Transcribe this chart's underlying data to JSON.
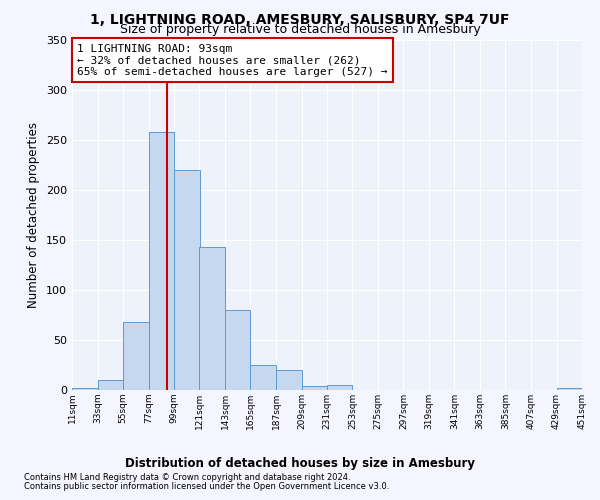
{
  "title": "1, LIGHTNING ROAD, AMESBURY, SALISBURY, SP4 7UF",
  "subtitle": "Size of property relative to detached houses in Amesbury",
  "xlabel": "Distribution of detached houses by size in Amesbury",
  "ylabel": "Number of detached properties",
  "footnote1": "Contains HM Land Registry data © Crown copyright and database right 2024.",
  "footnote2": "Contains public sector information licensed under the Open Government Licence v3.0.",
  "bin_edges": [
    11,
    33,
    55,
    77,
    99,
    121,
    143,
    165,
    187,
    209,
    231,
    253,
    275,
    297,
    319,
    341,
    363,
    385,
    407,
    429,
    451
  ],
  "bar_heights": [
    2,
    10,
    68,
    258,
    220,
    143,
    80,
    25,
    20,
    4,
    5,
    0,
    0,
    0,
    0,
    0,
    0,
    0,
    0,
    2
  ],
  "bar_color": "#c5d8f0",
  "bar_edgecolor": "#5b9bd5",
  "property_size": 93,
  "red_line_color": "#cc0000",
  "annotation_text": "1 LIGHTNING ROAD: 93sqm\n← 32% of detached houses are smaller (262)\n65% of semi-detached houses are larger (527) →",
  "annotation_box_edgecolor": "#cc0000",
  "annotation_fontsize": 8,
  "ylim": [
    0,
    350
  ],
  "yticks": [
    0,
    50,
    100,
    150,
    200,
    250,
    300,
    350
  ],
  "background_color": "#eef2fb",
  "grid_color": "#ffffff",
  "title_fontsize": 10,
  "subtitle_fontsize": 9,
  "xlabel_fontsize": 8.5,
  "ylabel_fontsize": 8.5
}
